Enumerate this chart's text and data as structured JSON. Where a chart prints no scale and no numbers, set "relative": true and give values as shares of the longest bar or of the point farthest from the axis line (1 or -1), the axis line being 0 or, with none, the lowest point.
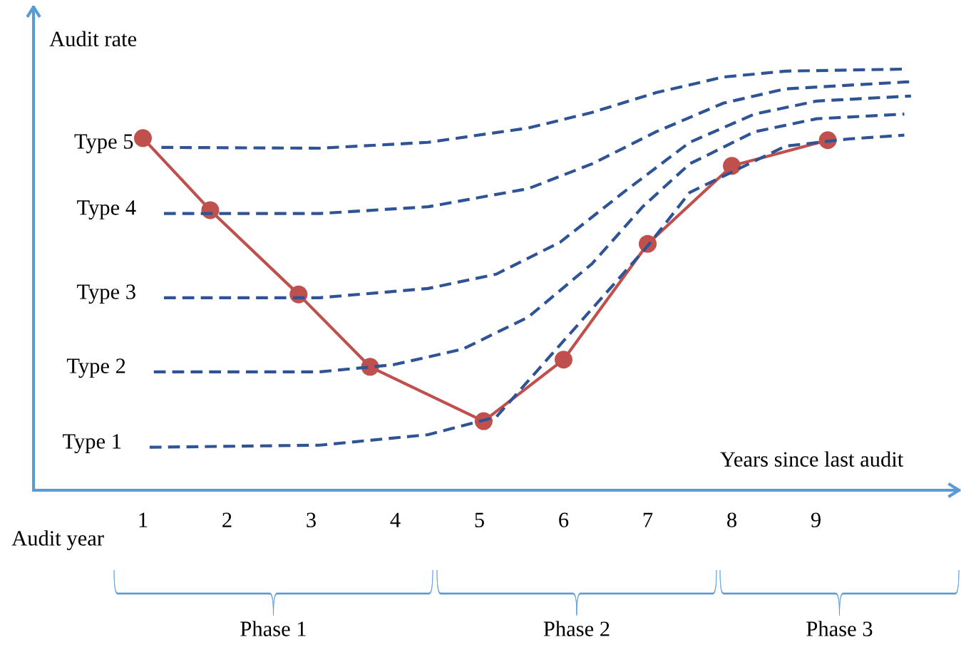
{
  "chart_data": {
    "type": "line",
    "relative": true,
    "ylabel": "Audit rate",
    "xlabel": "Years since last audit",
    "xlim": [
      -0.3,
      10.7
    ],
    "xticks": [
      1,
      2,
      3,
      4,
      5,
      6,
      7,
      8,
      9
    ],
    "tick_labels": "x",
    "grid": false,
    "legend": false,
    "annotations": [
      "Audit year",
      "Phase 1",
      "Phase 2",
      "Phase 3"
    ],
    "series": [
      {
        "name": "Type 5",
        "color": "#2f5496",
        "line_style": "dashed",
        "marker": "none",
        "x": [
          1.22,
          3.1,
          4.39,
          5.58,
          6.34,
          7.1,
          7.9,
          8.64,
          10.09
        ],
        "values": [
          0.814,
          0.812,
          0.826,
          0.86,
          0.897,
          0.944,
          0.981,
          0.995,
          1.0
        ]
      },
      {
        "name": "Type 4",
        "color": "#2f5496",
        "line_style": "dashed",
        "marker": "none",
        "x": [
          1.25,
          3.1,
          4.39,
          5.58,
          6.34,
          7.1,
          7.9,
          8.64,
          10.13
        ],
        "values": [
          0.657,
          0.657,
          0.673,
          0.716,
          0.775,
          0.851,
          0.919,
          0.953,
          0.97
        ]
      },
      {
        "name": "Type 3",
        "color": "#2f5496",
        "line_style": "dashed",
        "marker": "none",
        "x": [
          1.25,
          3.1,
          4.39,
          5.2,
          5.96,
          6.71,
          7.5,
          8.27,
          9.01,
          10.13
        ],
        "values": [
          0.457,
          0.457,
          0.479,
          0.513,
          0.589,
          0.707,
          0.826,
          0.893,
          0.924,
          0.936
        ]
      },
      {
        "name": "Type 2",
        "color": "#2f5496",
        "line_style": "dashed",
        "marker": "none",
        "x": [
          1.13,
          3.1,
          3.98,
          4.8,
          5.58,
          6.34,
          6.94,
          7.5,
          8.27,
          9.01,
          10.05
        ],
        "values": [
          0.281,
          0.281,
          0.298,
          0.335,
          0.411,
          0.538,
          0.673,
          0.775,
          0.851,
          0.882,
          0.893
        ]
      },
      {
        "name": "Type 1",
        "color": "#2f5496",
        "line_style": "dashed",
        "marker": "none",
        "x": [
          1.08,
          3.1,
          4.39,
          5.2,
          7.0,
          7.5,
          8.64,
          9.39,
          10.05
        ],
        "values": [
          0.102,
          0.107,
          0.132,
          0.174,
          0.58,
          0.707,
          0.817,
          0.834,
          0.843
        ]
      },
      {
        "color": "#c0504d",
        "line_style": "solid",
        "marker": "circle",
        "x": [
          1.0,
          1.8,
          2.85,
          3.7,
          5.05,
          6.0,
          7.0,
          8.0,
          9.14
        ],
        "values": [
          0.836,
          0.665,
          0.465,
          0.293,
          0.164,
          0.31,
          0.585,
          0.77,
          0.831
        ]
      }
    ]
  }
}
